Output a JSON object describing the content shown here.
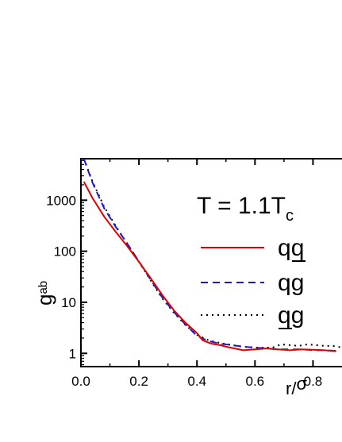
{
  "chart_data": {
    "type": "line",
    "annotation": {
      "text": "T = 1.1T",
      "subscript": "c"
    },
    "xlabel": {
      "text": "r/",
      "greek": "σ"
    },
    "ylabel": {
      "text": "g",
      "subscript": "ab"
    },
    "xscale": "linear",
    "yscale": "log",
    "xlim": [
      0.0,
      0.9
    ],
    "ylim": [
      0.55,
      6500
    ],
    "xticks": [
      {
        "value": 0.0,
        "label": "0.0"
      },
      {
        "value": 0.2,
        "label": "0.2"
      },
      {
        "value": 0.4,
        "label": "0.4"
      },
      {
        "value": 0.6,
        "label": "0.6"
      },
      {
        "value": 0.8,
        "label": "0.8"
      }
    ],
    "yticks": [
      {
        "value": 1,
        "label": "1"
      },
      {
        "value": 10,
        "label": "10"
      },
      {
        "value": 100,
        "label": "100"
      },
      {
        "value": 1000,
        "label": "1000"
      }
    ],
    "legend_placement": "right",
    "series": [
      {
        "name": "qq̲",
        "label_main": "q",
        "label_second": "q",
        "underline": "second",
        "color": "#e00000",
        "dash": "solid",
        "x": [
          0.01,
          0.04,
          0.08,
          0.12,
          0.16,
          0.2,
          0.24,
          0.28,
          0.32,
          0.36,
          0.4,
          0.42,
          0.45,
          0.48,
          0.5,
          0.53,
          0.56,
          0.6,
          0.64,
          0.68,
          0.72,
          0.76,
          0.8,
          0.84,
          0.88
        ],
        "y": [
          2300,
          1100,
          480,
          240,
          125,
          62,
          30,
          14,
          7,
          4,
          2.5,
          1.8,
          1.55,
          1.45,
          1.35,
          1.25,
          1.15,
          1.2,
          1.25,
          1.2,
          1.15,
          1.2,
          1.18,
          1.15,
          1.1
        ]
      },
      {
        "name": "qg",
        "label_main": "q",
        "label_second": "g",
        "underline": "none",
        "color": "#1a1acc",
        "dash": "dashed",
        "x": [
          0.01,
          0.04,
          0.08,
          0.12,
          0.16,
          0.2,
          0.24,
          0.28,
          0.32,
          0.36,
          0.4,
          0.44,
          0.48,
          0.52,
          0.56,
          0.6,
          0.64,
          0.68,
          0.72,
          0.76,
          0.8,
          0.84,
          0.88
        ],
        "y": [
          6500,
          2200,
          700,
          300,
          140,
          63,
          28,
          12.5,
          6.5,
          3.7,
          2.2,
          1.75,
          1.55,
          1.45,
          1.35,
          1.3,
          1.25,
          1.2,
          1.2,
          1.2,
          1.15,
          1.15,
          1.12
        ]
      },
      {
        "name": "q̲g",
        "label_main": "q",
        "label_second": "g",
        "underline": "first",
        "color": "#000000",
        "dash": "dotted",
        "x": [
          0.01,
          0.04,
          0.08,
          0.12,
          0.16,
          0.2,
          0.24,
          0.28,
          0.32,
          0.36,
          0.4,
          0.44,
          0.48,
          0.52,
          0.56,
          0.6,
          0.63,
          0.66,
          0.69,
          0.72,
          0.75,
          0.78,
          0.81,
          0.84,
          0.87,
          0.9
        ],
        "y": [
          6500,
          2300,
          750,
          310,
          140,
          62,
          27,
          12,
          6.3,
          3.6,
          2.3,
          1.8,
          1.6,
          1.45,
          1.35,
          1.3,
          1.3,
          1.3,
          1.5,
          1.45,
          1.4,
          1.5,
          1.45,
          1.4,
          1.4,
          1.3
        ]
      }
    ]
  }
}
